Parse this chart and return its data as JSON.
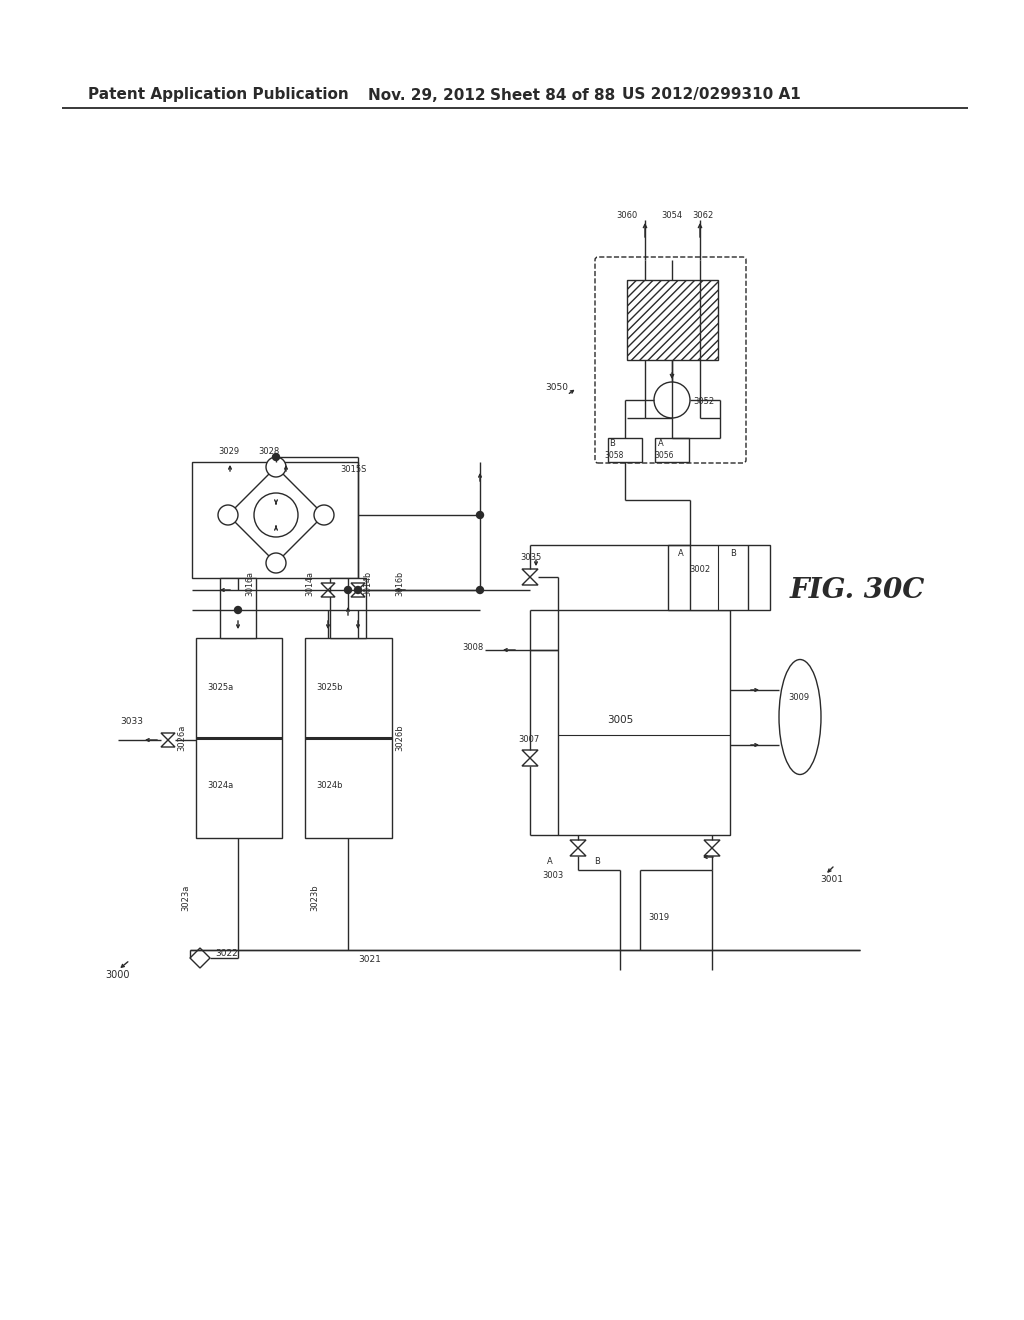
{
  "bg": "#ffffff",
  "hdr_left": "Patent Application Publication",
  "hdr_date": "Nov. 29, 2012",
  "hdr_sheet": "Sheet 84 of 88",
  "hdr_patent": "US 2012/0299310 A1",
  "fig_label": "FIG. 30C",
  "line_color": "#2a2a2a"
}
